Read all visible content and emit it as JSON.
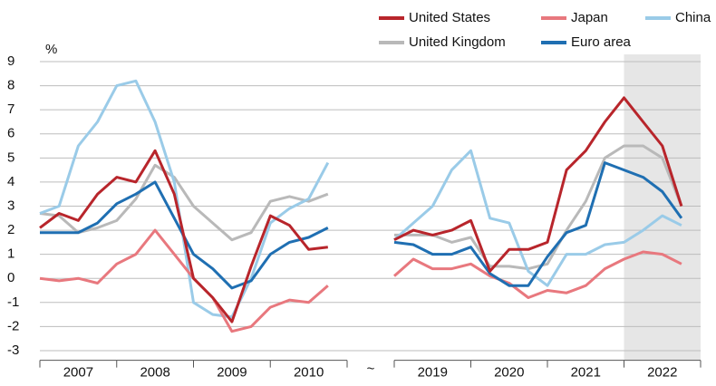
{
  "chart_data": {
    "type": "line",
    "y_label": "%",
    "ylim": [
      -3.4,
      9
    ],
    "yticks": [
      -3,
      -2,
      -1,
      0,
      1,
      2,
      3,
      4,
      5,
      6,
      7,
      8,
      9
    ],
    "grid": true,
    "x_segments": [
      {
        "xlim": [
          2007,
          2011
        ],
        "categories": [
          "2007",
          "2008",
          "2009",
          "2010"
        ]
      },
      {
        "xlim": [
          2019,
          2023
        ],
        "categories": [
          "2019",
          "2020",
          "2021",
          "2022"
        ]
      }
    ],
    "break_label": "~",
    "shaded_range": [
      2022,
      2023
    ],
    "x": [
      2007,
      2007.25,
      2007.5,
      2007.75,
      2008,
      2008.25,
      2008.5,
      2008.75,
      2009,
      2009.25,
      2009.5,
      2009.75,
      2010,
      2010.25,
      2010.5,
      2010.75,
      2019,
      2019.25,
      2019.5,
      2019.75,
      2020,
      2020.25,
      2020.5,
      2020.75,
      2021,
      2021.25,
      2021.5,
      2021.75,
      2022,
      2022.25,
      2022.5,
      2022.75
    ],
    "series": [
      {
        "name": "United Kingdom",
        "color": "#b9b9b9",
        "values": [
          2.7,
          2.6,
          1.9,
          2.1,
          2.4,
          3.3,
          4.7,
          4.2,
          3.0,
          2.3,
          1.6,
          1.9,
          3.2,
          3.4,
          3.2,
          3.5,
          1.8,
          1.8,
          1.8,
          1.5,
          1.7,
          0.5,
          0.5,
          0.4,
          0.6,
          2.0,
          3.2,
          5.0,
          5.5,
          5.5,
          5.0,
          3.0
        ]
      },
      {
        "name": "China",
        "color": "#9acbe8",
        "values": [
          2.7,
          3.0,
          5.5,
          6.5,
          8.0,
          8.2,
          6.5,
          4.0,
          -1.0,
          -1.5,
          -1.6,
          0.0,
          2.3,
          2.9,
          3.3,
          4.8,
          1.6,
          2.3,
          3.0,
          4.5,
          5.3,
          2.5,
          2.3,
          0.3,
          -0.3,
          1.0,
          1.0,
          1.4,
          1.5,
          2.0,
          2.6,
          2.2
        ]
      },
      {
        "name": "Japan",
        "color": "#e8787e",
        "values": [
          0.0,
          -0.1,
          0.0,
          -0.2,
          0.6,
          1.0,
          2.0,
          1.0,
          0.0,
          -0.8,
          -2.2,
          -2.0,
          -1.2,
          -0.9,
          -1.0,
          -0.3,
          0.1,
          0.8,
          0.4,
          0.4,
          0.6,
          0.1,
          -0.2,
          -0.8,
          -0.5,
          -0.6,
          -0.3,
          0.4,
          0.8,
          1.1,
          1.0,
          0.6
        ]
      },
      {
        "name": "Euro area",
        "color": "#1f6fb2",
        "values": [
          1.9,
          1.9,
          1.9,
          2.3,
          3.1,
          3.5,
          4.0,
          2.5,
          1.0,
          0.4,
          -0.4,
          -0.1,
          1.0,
          1.5,
          1.7,
          2.1,
          1.5,
          1.4,
          1.0,
          1.0,
          1.3,
          0.2,
          -0.3,
          -0.3,
          0.9,
          1.9,
          2.2,
          4.8,
          4.5,
          4.2,
          3.6,
          2.5
        ]
      },
      {
        "name": "United States",
        "color": "#b8252b",
        "values": [
          2.1,
          2.7,
          2.4,
          3.5,
          4.2,
          4.0,
          5.3,
          3.5,
          0.0,
          -0.8,
          -1.8,
          0.5,
          2.6,
          2.2,
          1.2,
          1.3,
          1.6,
          2.0,
          1.8,
          2.0,
          2.4,
          0.3,
          1.2,
          1.2,
          1.5,
          4.5,
          5.3,
          6.5,
          7.5,
          6.5,
          5.5,
          3.0
        ]
      }
    ],
    "legend_order": [
      4,
      2,
      1,
      0,
      3
    ]
  }
}
